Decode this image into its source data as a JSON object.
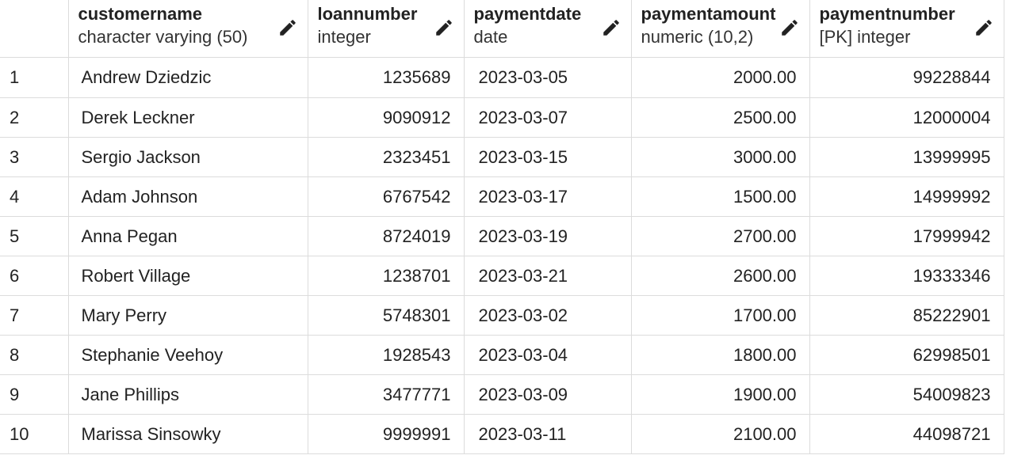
{
  "columns": [
    {
      "name": "customername",
      "type": "character varying (50)"
    },
    {
      "name": "loannumber",
      "type": "integer"
    },
    {
      "name": "paymentdate",
      "type": "date"
    },
    {
      "name": "paymentamount",
      "type": "numeric (10,2)"
    },
    {
      "name": "paymentnumber",
      "type": "[PK] integer"
    }
  ],
  "rows": [
    {
      "n": "1",
      "customername": "Andrew Dziedzic",
      "loannumber": "1235689",
      "paymentdate": "2023-03-05",
      "paymentamount": "2000.00",
      "paymentnumber": "99228844"
    },
    {
      "n": "2",
      "customername": "Derek Leckner",
      "loannumber": "9090912",
      "paymentdate": "2023-03-07",
      "paymentamount": "2500.00",
      "paymentnumber": "12000004"
    },
    {
      "n": "3",
      "customername": "Sergio Jackson",
      "loannumber": "2323451",
      "paymentdate": "2023-03-15",
      "paymentamount": "3000.00",
      "paymentnumber": "13999995"
    },
    {
      "n": "4",
      "customername": "Adam Johnson",
      "loannumber": "6767542",
      "paymentdate": "2023-03-17",
      "paymentamount": "1500.00",
      "paymentnumber": "14999992"
    },
    {
      "n": "5",
      "customername": "Anna Pegan",
      "loannumber": "8724019",
      "paymentdate": "2023-03-19",
      "paymentamount": "2700.00",
      "paymentnumber": "17999942"
    },
    {
      "n": "6",
      "customername": "Robert Village",
      "loannumber": "1238701",
      "paymentdate": "2023-03-21",
      "paymentamount": "2600.00",
      "paymentnumber": "19333346"
    },
    {
      "n": "7",
      "customername": "Mary Perry",
      "loannumber": "5748301",
      "paymentdate": "2023-03-02",
      "paymentamount": "1700.00",
      "paymentnumber": "85222901"
    },
    {
      "n": "8",
      "customername": "Stephanie Veehoy",
      "loannumber": "1928543",
      "paymentdate": "2023-03-04",
      "paymentamount": "1800.00",
      "paymentnumber": "62998501"
    },
    {
      "n": "9",
      "customername": "Jane Phillips",
      "loannumber": "3477771",
      "paymentdate": "2023-03-09",
      "paymentamount": "1900.00",
      "paymentnumber": "54009823"
    },
    {
      "n": "10",
      "customername": "Marissa Sinsowky",
      "loannumber": "9999991",
      "paymentdate": "2023-03-11",
      "paymentamount": "2100.00",
      "paymentnumber": "44098721"
    }
  ],
  "icons": {
    "column_edit": "pencil-icon"
  },
  "colors": {
    "grid_line": "#dcdcdc",
    "text": "#222222",
    "background": "#ffffff"
  }
}
